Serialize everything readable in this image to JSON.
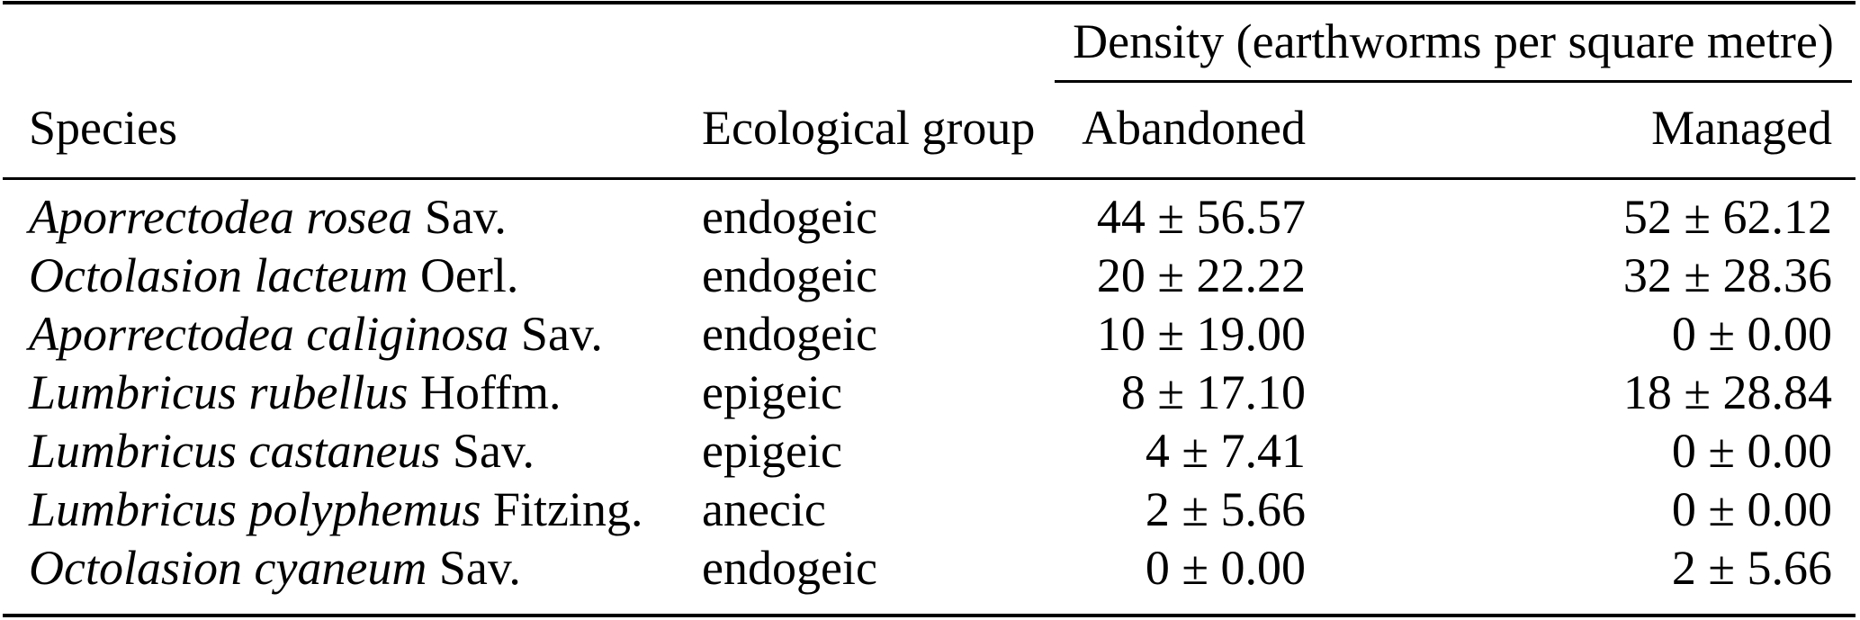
{
  "table": {
    "density_group_header": "Density (earthworms per square metre)",
    "columns": {
      "species": "Species",
      "group": "Ecological group",
      "abandoned": "Abandoned",
      "managed": "Managed"
    },
    "rows": [
      {
        "name": "Aporrectodea rosea",
        "auth": "Sav.",
        "group": "endogeic",
        "abandoned": "44 ± 56.57",
        "managed": "52 ± 62.12"
      },
      {
        "name": "Octolasion lacteum",
        "auth": "Oerl.",
        "group": "endogeic",
        "abandoned": "20 ± 22.22",
        "managed": "32 ± 28.36"
      },
      {
        "name": "Aporrectodea caliginosa",
        "auth": "Sav.",
        "group": "endogeic",
        "abandoned": "10 ± 19.00",
        "managed": "0 ± 0.00"
      },
      {
        "name": "Lumbricus rubellus",
        "auth": "Hoffm.",
        "group": "epigeic",
        "abandoned": "8 ± 17.10",
        "managed": "18 ± 28.84"
      },
      {
        "name": "Lumbricus castaneus",
        "auth": "Sav.",
        "group": "epigeic",
        "abandoned": "4 ± 7.41",
        "managed": "0 ± 0.00"
      },
      {
        "name": "Lumbricus polyphemus",
        "auth": "Fitzing.",
        "group": "anecic",
        "abandoned": "2 ± 5.66",
        "managed": "0 ± 0.00"
      },
      {
        "name": "Octolasion cyaneum",
        "auth": "Sav.",
        "group": "endogeic",
        "abandoned": "0 ± 0.00",
        "managed": "2 ± 5.66"
      }
    ]
  },
  "chart_data": {
    "type": "table",
    "title": "Density (earthworms per square metre)",
    "columns": [
      "Species",
      "Ecological group",
      "Abandoned",
      "Managed"
    ],
    "rows": [
      [
        "Aporrectodea rosea Sav.",
        "endogeic",
        "44 ± 56.57",
        "52 ± 62.12"
      ],
      [
        "Octolasion lacteum Oerl.",
        "endogeic",
        "20 ± 22.22",
        "32 ± 28.36"
      ],
      [
        "Aporrectodea caliginosa Sav.",
        "endogeic",
        "10 ± 19.00",
        "0 ± 0.00"
      ],
      [
        "Lumbricus rubellus Hoffm.",
        "epigeic",
        "8 ± 17.10",
        "18 ± 28.84"
      ],
      [
        "Lumbricus castaneus Sav.",
        "epigeic",
        "4 ± 7.41",
        "0 ± 0.00"
      ],
      [
        "Lumbricus polyphemus Fitzing.",
        "anecic",
        "2 ± 5.66",
        "0 ± 0.00"
      ],
      [
        "Octolasion cyaneum Sav.",
        "endogeic",
        "0 ± 0.00",
        "2 ± 5.66"
      ]
    ]
  },
  "colors": {
    "text": "#000000",
    "background": "#ffffff",
    "rule": "#000000"
  }
}
